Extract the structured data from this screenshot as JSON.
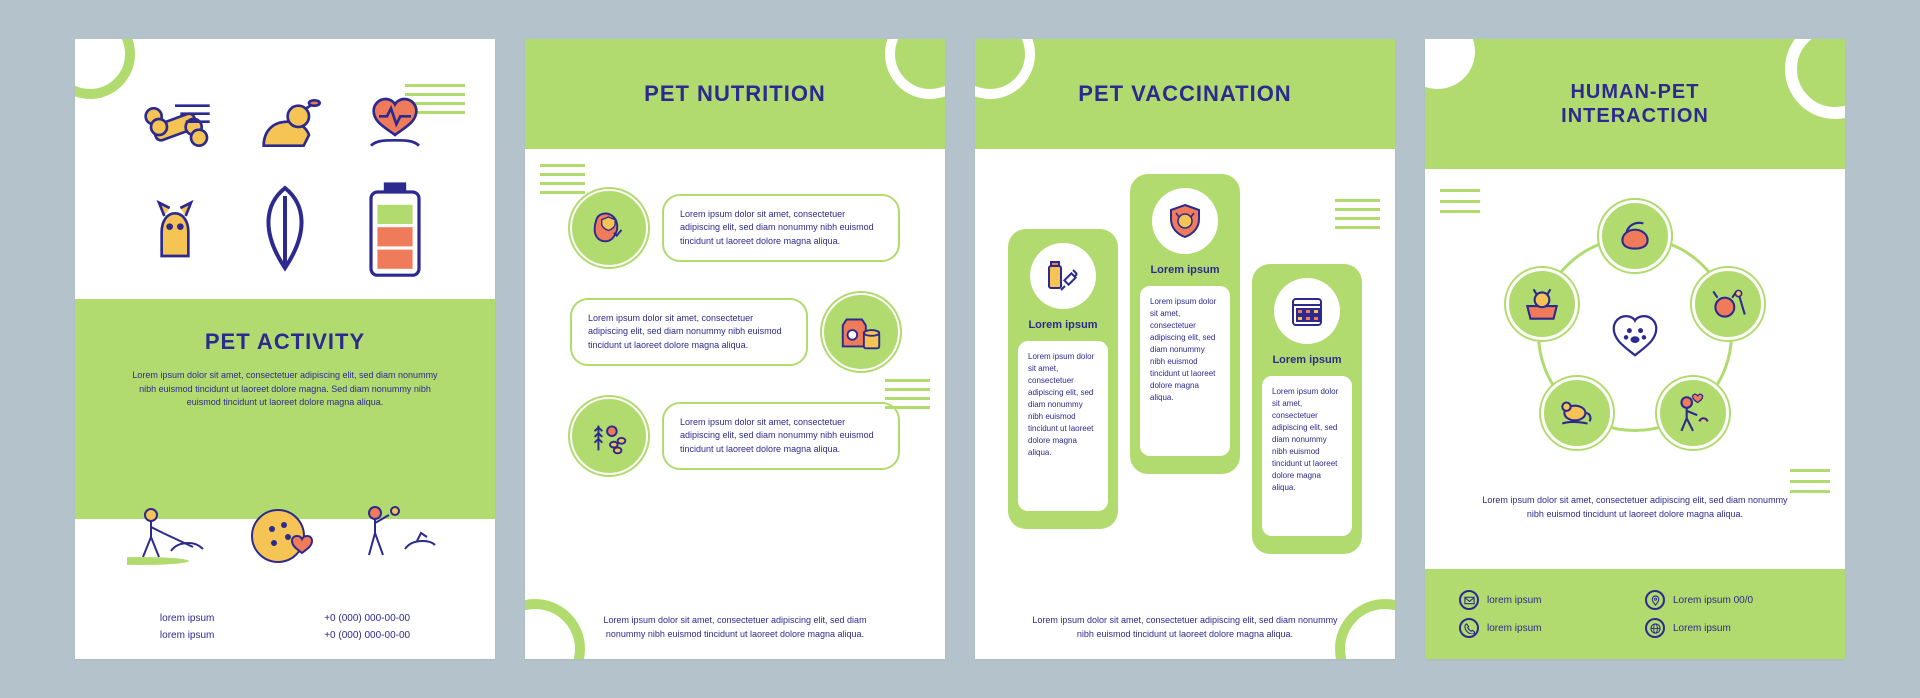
{
  "colors": {
    "page_bg": "#b4c3cb",
    "panel_bg": "#ffffff",
    "accent": "#b2db6f",
    "text": "#2c2a8f",
    "icon_orange": "#ef7b5a",
    "icon_yellow": "#f6c454",
    "icon_line": "#2c2a8f"
  },
  "lorem_short": "Lorem ipsum dolor sit amet, consectetuer adipiscing elit, sed diam nonummy nibh euismod tincidunt ut laoreet dolore magna aliqua.",
  "lorem_long": "Lorem ipsum dolor sit amet, consectetuer adipiscing elit, sed diam nonummy nibh euismod tincidunt ut laoreet dolore magna. Sed diam nonummy nibh euismod tincidunt ut laoreet dolore magna aliqua.",
  "panel1": {
    "title": "PET ACTIVITY",
    "body": "Lorem ipsum dolor sit amet, consectetuer adipiscing elit, sed diam nonummy nibh euismod tincidunt ut laoreet dolore magna. Sed diam nonummy nibh euismod tincidunt ut laoreet dolore magna aliqua.",
    "top_icons": [
      "bone-icon",
      "dog-fetch-icon",
      "heart-hand-icon",
      "cat-icon",
      "leaf-icon",
      "battery-icon"
    ],
    "bottom_icons": [
      "walk-dog-icon",
      "ball-heart-icon",
      "play-fetch-icon"
    ],
    "contact": {
      "text1": "lorem ipsum",
      "text2": "lorem ipsum",
      "phone1": "+0 (000) 000-00-00",
      "phone2": "+0 (000) 000-00-00"
    }
  },
  "panel2": {
    "title": "PET NUTRITION",
    "items": [
      {
        "icon": "stomach-shield-icon",
        "text": "Lorem ipsum dolor sit amet, consectetuer adipiscing elit, sed diam nonummy nibh euismod tincidunt ut laoreet dolore magna aliqua."
      },
      {
        "icon": "pet-food-icon",
        "text": "Lorem ipsum dolor sit amet, consectetuer adipiscing elit, sed diam nonummy nibh euismod tincidunt ut laoreet dolore magna aliqua."
      },
      {
        "icon": "grains-icon",
        "text": "Lorem ipsum dolor sit amet, consectetuer adipiscing elit, sed diam nonummy nibh euismod tincidunt ut laoreet dolore magna aliqua."
      }
    ],
    "footer": "Lorem ipsum dolor sit amet, consectetuer adipiscing elit, sed diam nonummy nibh euismod tincidunt ut laoreet dolore magna aliqua."
  },
  "panel3": {
    "title": "PET VACCINATION",
    "columns": [
      {
        "icon": "vial-syringe-icon",
        "label": "Lorem ipsum",
        "text": "Lorem ipsum dolor sit amet, consectetuer adipiscing elit, sed diam nonummy nibh euismod tincidunt ut laoreet dolore magna aliqua."
      },
      {
        "icon": "dog-shield-icon",
        "label": "Lorem ipsum",
        "text": "Lorem ipsum dolor sit amet, consectetuer adipiscing elit, sed diam nonummy nibh euismod tincidunt ut laoreet dolore magna aliqua."
      },
      {
        "icon": "calendar-check-icon",
        "label": "Lorem ipsum",
        "text": "Lorem ipsum dolor sit amet, consectetuer adipiscing elit, sed diam nonummy nibh euismod tincidunt ut laoreet dolore magna aliqua."
      }
    ],
    "footer": "Lorem ipsum dolor sit amet, consectetuer adipiscing elit, sed diam nonummy nibh euismod tincidunt ut laoreet dolore magna aliqua."
  },
  "panel4": {
    "title": "HUMAN-PET\nINTERACTION",
    "nodes": [
      {
        "icon": "cat-face-icon",
        "angle": -90
      },
      {
        "icon": "dog-groom-icon",
        "angle": -30
      },
      {
        "icon": "person-cat-icon",
        "angle": 30
      },
      {
        "icon": "mouse-hand-icon",
        "angle": 90
      },
      {
        "icon": "dog-bath-icon",
        "angle": 150
      },
      {
        "icon": "hand-pet-icon",
        "angle": 210
      }
    ],
    "center_icon": "paw-heart-icon",
    "body": "Lorem ipsum dolor sit amet, consectetuer adipiscing elit, sed diam nonummy nibh euismod tincidunt ut laoreet dolore magna aliqua.",
    "footer": [
      {
        "icon": "mail-icon",
        "text": "lorem ipsum"
      },
      {
        "icon": "pin-icon",
        "text": "Lorem ipsum 00/0"
      },
      {
        "icon": "phone-icon",
        "text": "lorem ipsum"
      },
      {
        "icon": "globe-icon",
        "text": "Lorem ipsum"
      }
    ]
  }
}
